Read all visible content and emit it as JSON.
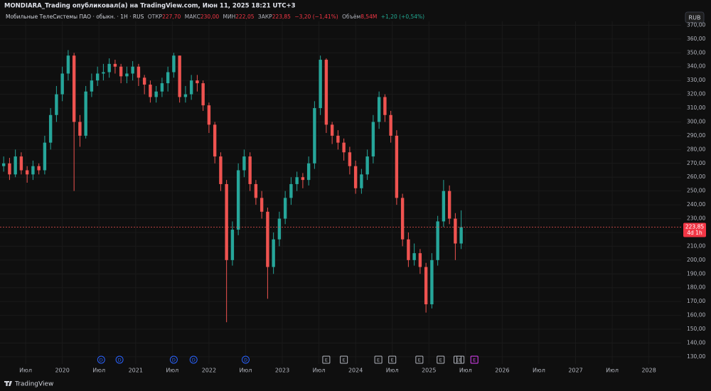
{
  "chart_data": {
    "type": "candlestick",
    "header": "MONDIARA_Trading опубликовал(а) на TradingView.com, Июн 11, 2025 18:21 UTC+3",
    "title": "Мобильные ТелеСистемы ПАО · обыкн. · 1Н · RUS",
    "info": [
      {
        "label": "ОТКР",
        "value": "227,70"
      },
      {
        "label": "МАКС",
        "value": "230,00"
      },
      {
        "label": "МИН",
        "value": "222,05"
      },
      {
        "label": "ЗАКР",
        "value": "223,85"
      }
    ],
    "change": "−3,20 (−1,41%)",
    "volume_label": "Объём",
    "volume": "8,54M",
    "volume_change": "+1,20 (+0,54%)",
    "currency": "RUB",
    "up_color": "#26a69a",
    "down_color": "#ef5350",
    "x": [
      2019.2,
      2019.28,
      2019.36,
      2019.44,
      2019.52,
      2019.6,
      2019.68,
      2019.76,
      2019.84,
      2019.92,
      2020,
      2020.08,
      2020.16,
      2020.24,
      2020.32,
      2020.4,
      2020.48,
      2020.56,
      2020.64,
      2020.72,
      2020.8,
      2020.88,
      2020.96,
      2021.04,
      2021.12,
      2021.2,
      2021.28,
      2021.36,
      2021.44,
      2021.52,
      2021.6,
      2021.68,
      2021.76,
      2021.84,
      2021.92,
      2022,
      2022.08,
      2022.16,
      2022.24,
      2022.32,
      2022.4,
      2022.48,
      2022.56,
      2022.64,
      2022.72,
      2022.8,
      2022.88,
      2022.96,
      2023.04,
      2023.12,
      2023.2,
      2023.28,
      2023.36,
      2023.44,
      2023.52,
      2023.6,
      2023.68,
      2023.76,
      2023.84,
      2023.92,
      2024,
      2024.08,
      2024.16,
      2024.24,
      2024.32,
      2024.4,
      2024.48,
      2024.56,
      2024.64,
      2024.72,
      2024.8,
      2024.88,
      2024.96,
      2025.04,
      2025.12,
      2025.2,
      2025.28,
      2025.36,
      2025.44
    ],
    "open": [
      268,
      270,
      262,
      275,
      265,
      262,
      268,
      265,
      285,
      305,
      320,
      335,
      348,
      300,
      290,
      322,
      330,
      335,
      336,
      342,
      340,
      333,
      335,
      340,
      332,
      327,
      318,
      322,
      328,
      336,
      348,
      318,
      320,
      330,
      328,
      312,
      298,
      275,
      255,
      200,
      222,
      265,
      275,
      255,
      245,
      235,
      195,
      215,
      230,
      245,
      255,
      260,
      258,
      270,
      310,
      345,
      298,
      290,
      285,
      278,
      268,
      252,
      262,
      275,
      300,
      318,
      305,
      290,
      245,
      215,
      200,
      205,
      195,
      168,
      200,
      228,
      250,
      230,
      212
    ],
    "high": [
      275,
      274,
      280,
      278,
      268,
      272,
      270,
      290,
      310,
      326,
      340,
      352,
      350,
      305,
      326,
      335,
      340,
      342,
      346,
      345,
      342,
      340,
      344,
      342,
      334,
      330,
      326,
      332,
      340,
      350,
      348,
      326,
      334,
      334,
      330,
      314,
      300,
      278,
      258,
      228,
      270,
      280,
      278,
      258,
      250,
      238,
      220,
      235,
      250,
      260,
      264,
      263,
      275,
      315,
      348,
      346,
      300,
      294,
      288,
      282,
      272,
      266,
      280,
      305,
      322,
      320,
      308,
      294,
      248,
      220,
      212,
      208,
      198,
      205,
      232,
      258,
      254,
      234,
      236
    ],
    "low": [
      264,
      258,
      260,
      262,
      256,
      258,
      262,
      262,
      280,
      300,
      315,
      330,
      250,
      282,
      288,
      318,
      326,
      330,
      332,
      335,
      328,
      328,
      330,
      326,
      320,
      314,
      314,
      318,
      322,
      332,
      314,
      314,
      316,
      322,
      308,
      292,
      270,
      250,
      155,
      196,
      218,
      260,
      250,
      240,
      230,
      172,
      190,
      210,
      226,
      240,
      250,
      252,
      254,
      266,
      305,
      292,
      284,
      280,
      272,
      262,
      248,
      248,
      258,
      270,
      295,
      300,
      285,
      240,
      210,
      195,
      196,
      190,
      162,
      165,
      196,
      224,
      226,
      200,
      208
    ],
    "close": [
      270,
      262,
      275,
      265,
      262,
      268,
      265,
      285,
      305,
      320,
      335,
      348,
      300,
      290,
      322,
      330,
      335,
      336,
      342,
      340,
      333,
      335,
      340,
      332,
      327,
      318,
      322,
      328,
      336,
      348,
      318,
      320,
      330,
      328,
      312,
      298,
      275,
      255,
      200,
      222,
      265,
      275,
      255,
      245,
      235,
      195,
      215,
      230,
      245,
      255,
      260,
      258,
      270,
      310,
      345,
      298,
      290,
      285,
      278,
      268,
      252,
      262,
      275,
      300,
      318,
      305,
      290,
      245,
      215,
      200,
      205,
      195,
      168,
      200,
      228,
      250,
      230,
      212,
      223.85
    ],
    "last_price_label": "223,85",
    "countdown": "4d 1h",
    "xlim": [
      2019.15,
      2028.44
    ],
    "xticks": [
      {
        "value": 2019.5,
        "label": "Июл"
      },
      2020,
      {
        "value": 2020.5,
        "label": "Июл"
      },
      2021,
      {
        "value": 2021.5,
        "label": "Июл"
      },
      2022,
      {
        "value": 2022.5,
        "label": "Июл"
      },
      2023,
      {
        "value": 2023.5,
        "label": "Июл"
      },
      2024,
      {
        "value": 2024.5,
        "label": "Июл"
      },
      2025,
      {
        "value": 2025.5,
        "label": "Июл"
      },
      2026,
      {
        "value": 2026.5,
        "label": "Июл"
      },
      2027,
      {
        "value": 2027.5,
        "label": "Июл"
      },
      2028
    ],
    "ylim": [
      124.8,
      372.8
    ],
    "yticks": [
      {
        "value": 130,
        "label": "130,00"
      },
      {
        "value": 140,
        "label": "140,00"
      },
      {
        "value": 150,
        "label": "150,00"
      },
      {
        "value": 160,
        "label": "160,00"
      },
      {
        "value": 170,
        "label": "170,00"
      },
      {
        "value": 180,
        "label": "180,00"
      },
      {
        "value": 190,
        "label": "190,00"
      },
      {
        "value": 200,
        "label": "200,00"
      },
      {
        "value": 210,
        "label": "210,00"
      },
      {
        "value": 220,
        "label": "220,00"
      },
      {
        "value": 230,
        "label": "230,00"
      },
      {
        "value": 240,
        "label": "240,00"
      },
      {
        "value": 250,
        "label": "250,00"
      },
      {
        "value": 260,
        "label": "260,00"
      },
      {
        "value": 270,
        "label": "270,00"
      },
      {
        "value": 280,
        "label": "280,00"
      },
      {
        "value": 290,
        "label": "290,00"
      },
      {
        "value": 300,
        "label": "300,00"
      },
      {
        "value": 310,
        "label": "310,00"
      },
      {
        "value": 320,
        "label": "320,00"
      },
      {
        "value": 330,
        "label": "330,00"
      },
      {
        "value": 340,
        "label": "340,00"
      },
      {
        "value": 350,
        "label": "350,00"
      },
      {
        "value": 360,
        "label": "360,00"
      },
      {
        "value": 370,
        "label": "370,00"
      }
    ],
    "grid": true,
    "events": [
      {
        "x": 2020.53,
        "label": "D",
        "color": "#2962ff"
      },
      {
        "x": 2020.78,
        "label": "D",
        "color": "#2962ff"
      },
      {
        "x": 2021.52,
        "label": "D",
        "color": "#2962ff"
      },
      {
        "x": 2021.79,
        "label": "D",
        "color": "#2962ff"
      },
      {
        "x": 2022.5,
        "label": "D",
        "color": "#2962ff"
      },
      {
        "x": 2023.6,
        "label": "E",
        "color": "#b2b5be"
      },
      {
        "x": 2023.84,
        "label": "E",
        "color": "#b2b5be"
      },
      {
        "x": 2024.31,
        "label": "E",
        "color": "#b2b5be"
      },
      {
        "x": 2024.5,
        "label": "E",
        "color": "#b2b5be"
      },
      {
        "x": 2024.87,
        "label": "E",
        "color": "#b2b5be"
      },
      {
        "x": 2025.16,
        "label": "E",
        "color": "#b2b5be"
      },
      {
        "x": 2025.39,
        "label": "E",
        "color": "#b2b5be"
      },
      {
        "x": 2025.43,
        "label": "E",
        "color": "#b2b5be"
      },
      {
        "x": 2025.62,
        "label": "E",
        "color": "#e040fb"
      }
    ],
    "footer": "TradingView"
  }
}
